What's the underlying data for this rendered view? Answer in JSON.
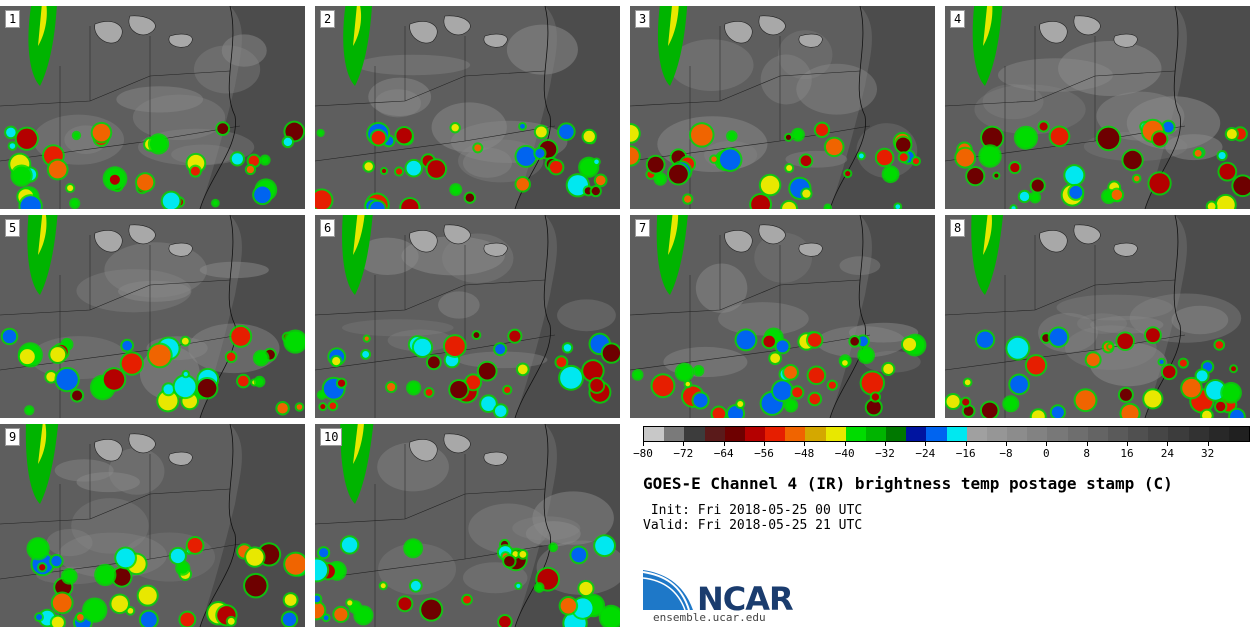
{
  "members": [
    {
      "label": "1"
    },
    {
      "label": "2"
    },
    {
      "label": "3"
    },
    {
      "label": "4"
    },
    {
      "label": "5"
    },
    {
      "label": "6"
    },
    {
      "label": "7"
    },
    {
      "label": "8"
    },
    {
      "label": "9"
    },
    {
      "label": "10"
    }
  ],
  "colorbar": {
    "colors": [
      "#c8c8c8",
      "#7a7a7a",
      "#3c3c3c",
      "#5a1a1a",
      "#6e0000",
      "#b40000",
      "#e61e00",
      "#f06400",
      "#d4a800",
      "#e8e800",
      "#00dc00",
      "#00b400",
      "#007800",
      "#0014a0",
      "#0064f0",
      "#00e8f0",
      "#a0a0a0",
      "#969696",
      "#8c8c8c",
      "#828282",
      "#787878",
      "#6e6e6e",
      "#646464",
      "#5a5a5a",
      "#505050",
      "#464646",
      "#3c3c3c",
      "#323232",
      "#282828",
      "#202020"
    ],
    "ticks": [
      "-80",
      "-72",
      "-64",
      "-56",
      "-48",
      "-40",
      "-32",
      "-24",
      "-16",
      "-8",
      "0",
      "8",
      "16",
      "24",
      "32"
    ],
    "min": -80,
    "max": 40
  },
  "title": "GOES-E Channel 4 (IR) brightness temp postage stamp (C)",
  "init_line": " Init: Fri 2018-05-25 00 UTC",
  "valid_line": "Valid: Fri 2018-05-25 21 UTC",
  "logo_text": "NCAR",
  "site": "ensemble.ucar.edu"
}
